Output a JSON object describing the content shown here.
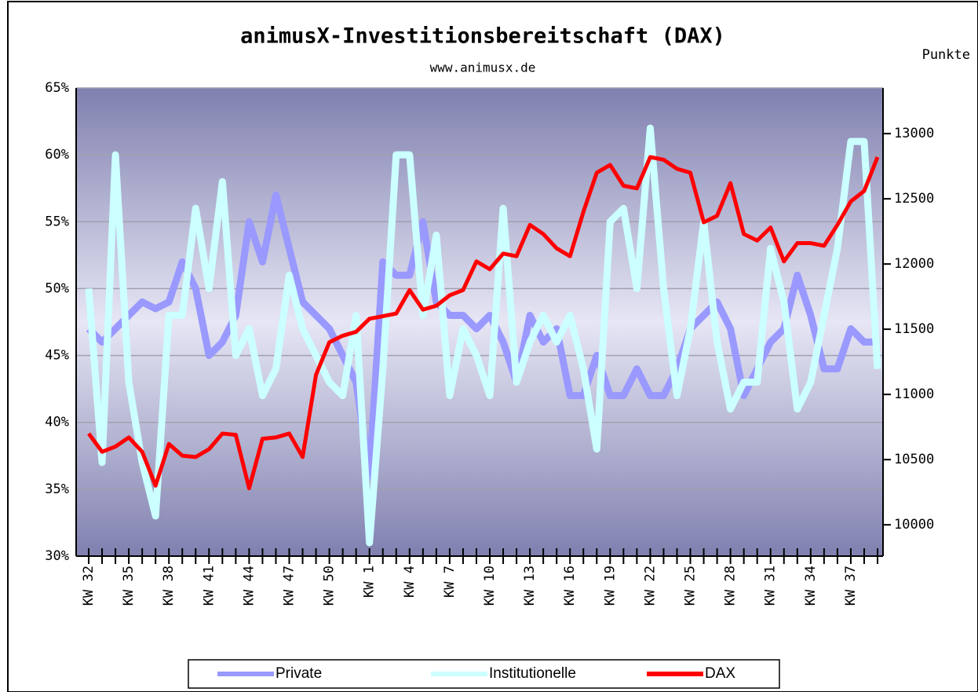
{
  "chart_data": {
    "type": "line",
    "title": "animusX-Investitionsbereitschaft (DAX)",
    "subtitle": "www.animusx.de",
    "y2_label": "Punkte",
    "categories": [
      "KW 32",
      null,
      null,
      "KW 35",
      null,
      null,
      "KW 38",
      null,
      null,
      "KW 41",
      null,
      null,
      "KW 44",
      null,
      null,
      "KW 47",
      null,
      null,
      "KW 50",
      null,
      null,
      "KW 1",
      null,
      null,
      "KW 4",
      null,
      null,
      "KW 7",
      null,
      null,
      "KW 10",
      null,
      null,
      "KW 13",
      null,
      null,
      "KW 16",
      null,
      null,
      "KW 19",
      null,
      null,
      "KW 22",
      null,
      null,
      "KW 25",
      null,
      null,
      "KW 28",
      null,
      null,
      "KW 31",
      null,
      null,
      "KW 34",
      null,
      null,
      "KW 37",
      null,
      null
    ],
    "ylim": [
      30,
      65
    ],
    "yticks": [
      {
        "value": 30,
        "label": "30%"
      },
      {
        "value": 35,
        "label": "35%"
      },
      {
        "value": 40,
        "label": "40%"
      },
      {
        "value": 45,
        "label": "45%"
      },
      {
        "value": 50,
        "label": "50%"
      },
      {
        "value": 55,
        "label": "55%"
      },
      {
        "value": 60,
        "label": "60%"
      },
      {
        "value": 65,
        "label": "65%"
      }
    ],
    "y2lim": [
      9760,
      13350
    ],
    "y2ticks": [
      10000,
      10500,
      11000,
      11500,
      12000,
      12500,
      13000
    ],
    "grid": true,
    "series": [
      {
        "name": "Private",
        "color": "#9999ff",
        "values": [
          47,
          46,
          47,
          48,
          49,
          48.5,
          49,
          52,
          50,
          45,
          46,
          48,
          55,
          52,
          57,
          53,
          49,
          48,
          47,
          45,
          43,
          36,
          52,
          51,
          51,
          55,
          49,
          48,
          48,
          47,
          48,
          46,
          43,
          48,
          46,
          47,
          42,
          42,
          45,
          42,
          42,
          44,
          42,
          42,
          44,
          47,
          48,
          49,
          47,
          42,
          44,
          46,
          47,
          51,
          48,
          44,
          44,
          47,
          46,
          46
        ]
      },
      {
        "name": "Institutionelle",
        "color": "#ccffff",
        "values": [
          50,
          37,
          60,
          43,
          37,
          33,
          48,
          48,
          56,
          50,
          58,
          45,
          47,
          42,
          44,
          51,
          47,
          45,
          43,
          42,
          48,
          31,
          44,
          60,
          60,
          48,
          54,
          42,
          47,
          45,
          42,
          56,
          43,
          46,
          48,
          46,
          48,
          44,
          38,
          55,
          56,
          50,
          62,
          50,
          42,
          47,
          55,
          46,
          41,
          43,
          43,
          53,
          49,
          41,
          43,
          48,
          53,
          61,
          61,
          44
        ]
      },
      {
        "name": "DAX",
        "color": "#ff0000",
        "axis": "y2",
        "values": [
          10700,
          10560,
          10600,
          10670,
          10560,
          10300,
          10620,
          10530,
          10520,
          10580,
          10700,
          10690,
          10280,
          10660,
          10670,
          10700,
          10520,
          11150,
          11400,
          11450,
          11480,
          11580,
          11600,
          11620,
          11800,
          11650,
          11680,
          11760,
          11800,
          12020,
          11960,
          12080,
          12060,
          12300,
          12230,
          12120,
          12060,
          12400,
          12700,
          12760,
          12600,
          12580,
          12820,
          12800,
          12730,
          12700,
          12320,
          12370,
          12620,
          12230,
          12180,
          12280,
          12020,
          12160,
          12160,
          12140,
          12300,
          12480,
          12560,
          12820
        ]
      }
    ]
  }
}
